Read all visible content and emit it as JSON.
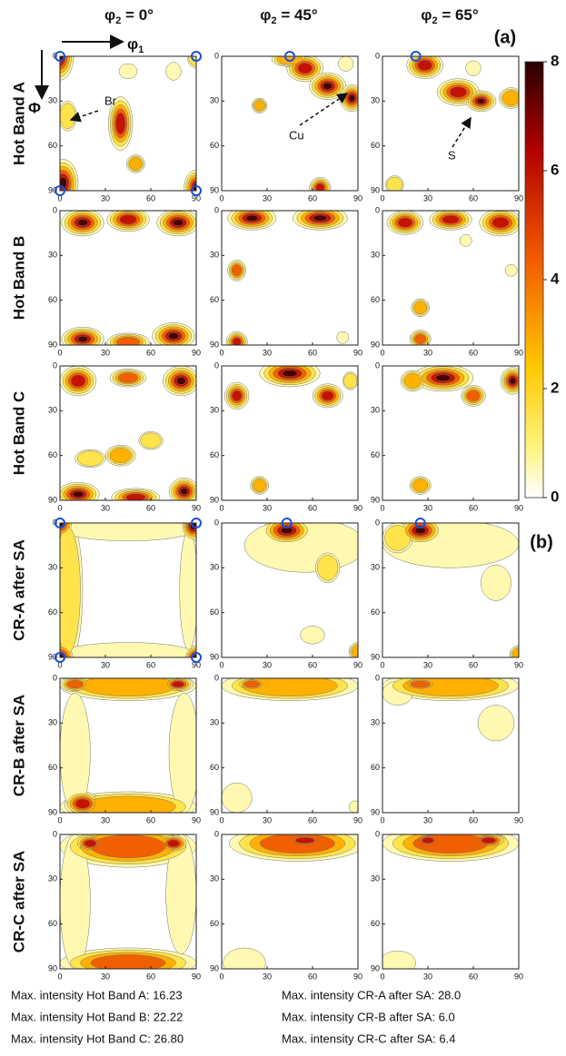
{
  "columns": [
    {
      "symbol": "φ",
      "sub": "2",
      "rest": " = 0°"
    },
    {
      "symbol": "φ",
      "sub": "2",
      "rest": " = 45°"
    },
    {
      "symbol": "φ",
      "sub": "2",
      "rest": " = 65°"
    }
  ],
  "axis_labels": {
    "phi1": {
      "symbol": "φ",
      "sub": "1"
    },
    "Phi": "Φ"
  },
  "panel_labels": [
    "(a)",
    "(b)"
  ],
  "rows": [
    "Hot Band A",
    "Hot Band B",
    "Hot Band C",
    "CR-A after SA",
    "CR-B after SA",
    "CR-C after SA"
  ],
  "axis_ticks": [
    0,
    30,
    60,
    90
  ],
  "colorbar": {
    "ticks": [
      8,
      6,
      4,
      2,
      0
    ]
  },
  "annotations": [
    "Br",
    "Cu",
    "S"
  ],
  "footer": {
    "left": [
      "Max. intensity Hot Band A: 16.23",
      "Max. intensity Hot Band B: 22.22",
      "Max. intensity Hot Band C: 26.80"
    ],
    "right": [
      "Max. intensity CR-A after SA: 28.0",
      "Max. intensity CR-B after SA: 6.0",
      "Max. intensity CR-C after SA: 6.4"
    ]
  }
}
